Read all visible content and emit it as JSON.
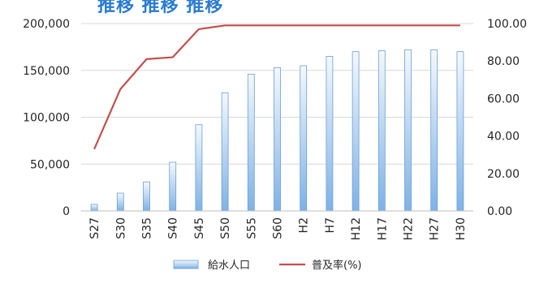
{
  "chart_data": {
    "type": "bar",
    "title": "",
    "categories": [
      "S27",
      "S30",
      "S35",
      "S40",
      "S45",
      "S50",
      "S55",
      "S60",
      "H2",
      "H7",
      "H12",
      "H17",
      "H22",
      "H27",
      "H30"
    ],
    "series": [
      {
        "name": "給水人口",
        "kind": "bar",
        "axis": "left",
        "values": [
          7000,
          19000,
          31000,
          52000,
          92000,
          126000,
          146000,
          153000,
          155000,
          165000,
          170000,
          171000,
          172000,
          172000,
          170000
        ]
      },
      {
        "name": "普及率(%)",
        "kind": "line",
        "axis": "right",
        "values": [
          33,
          65,
          81,
          82,
          97,
          99,
          99,
          99,
          99,
          99,
          99,
          99,
          99,
          99,
          99
        ]
      }
    ],
    "y_left": {
      "range": [
        0,
        200000
      ],
      "ticks": [
        0,
        50000,
        100000,
        150000,
        200000
      ],
      "tick_labels": [
        "0",
        "50,000",
        "100,000",
        "150,000",
        "200,000"
      ]
    },
    "y_right": {
      "range": [
        0,
        100
      ],
      "ticks": [
        0,
        20,
        40,
        60,
        80,
        100
      ],
      "tick_labels": [
        "0.00",
        "20.00",
        "40.00",
        "60.00",
        "80.00",
        "100.00"
      ]
    },
    "grid": true,
    "legend_position": "bottom-center",
    "colors": {
      "bar_top": "#f4f8fd",
      "bar_bottom": "#7fb2e6",
      "bar_edge": "#6c9fd4",
      "line": "#c0504d",
      "grid": "#d9d9d9",
      "title": "#2a7bd0"
    }
  },
  "title_fragment": "推移 推移 推移"
}
